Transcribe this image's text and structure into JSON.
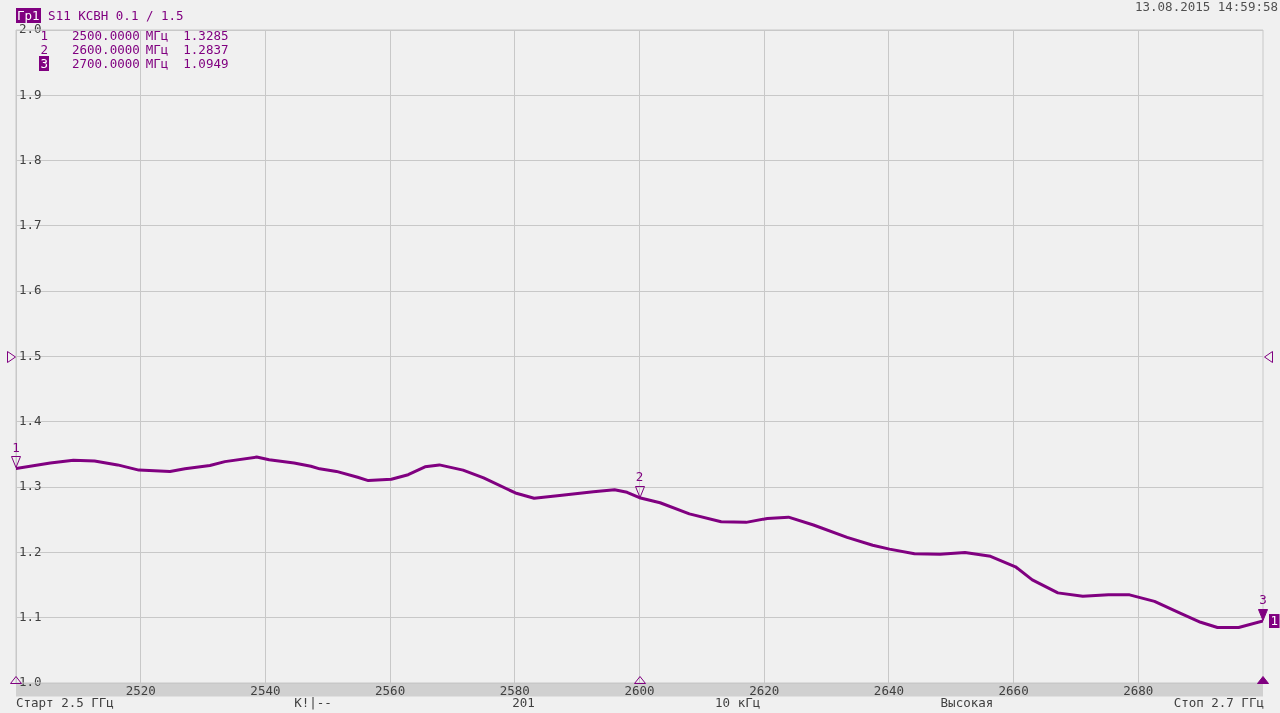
{
  "chart_data": {
    "type": "line",
    "title": "Гр1 S11 КСВН 0.1 / 1.5",
    "x": [
      2500,
      2505.5,
      2509.2,
      2512.6,
      2516.3,
      2519.7,
      2524.7,
      2527.1,
      2531.1,
      2533.5,
      2538.6,
      2540.6,
      2544.6,
      2547.3,
      2548.7,
      2551.4,
      2554.8,
      2556.5,
      2560.2,
      2562.9,
      2565.6,
      2567.9,
      2571.7,
      2575.0,
      2580.1,
      2583.1,
      2587.2,
      2592.6,
      2596.0,
      2598.0,
      2600,
      2603.3,
      2608.0,
      2613.1,
      2617.1,
      2620.5,
      2623.9,
      2627.9,
      2633.3,
      2637.4,
      2640.1,
      2644.1,
      2648.2,
      2652.2,
      2656.3,
      2660.3,
      2663.0,
      2667.1,
      2671.1,
      2675.2,
      2678.6,
      2682.6,
      2686.7,
      2690.0,
      2692.7,
      2696.1,
      2700
    ],
    "series": [
      {
        "name": "1",
        "color": "#800080",
        "values": [
          1.3285,
          1.337,
          1.341,
          1.34,
          1.334,
          1.326,
          1.324,
          1.328,
          1.333,
          1.339,
          1.346,
          1.342,
          1.337,
          1.332,
          1.328,
          1.324,
          1.315,
          1.31,
          1.312,
          1.319,
          1.331,
          1.334,
          1.326,
          1.314,
          1.291,
          1.283,
          1.287,
          1.293,
          1.296,
          1.292,
          1.2837,
          1.276,
          1.259,
          1.247,
          1.246,
          1.252,
          1.254,
          1.242,
          1.223,
          1.211,
          1.205,
          1.198,
          1.197,
          1.2,
          1.194,
          1.178,
          1.158,
          1.138,
          1.133,
          1.135,
          1.135,
          1.125,
          1.107,
          1.093,
          1.085,
          1.085,
          1.0949
        ]
      }
    ],
    "xlim": [
      2500,
      2700
    ],
    "xticks": [
      2520,
      2540,
      2560,
      2580,
      2600,
      2620,
      2640,
      2660,
      2680
    ],
    "ylim": [
      1,
      2
    ],
    "yticks": [
      {
        "value": 1,
        "label": "1.0"
      },
      1.1,
      1.2,
      1.3,
      1.4,
      1.5,
      1.6,
      1.7,
      1.8,
      1.9,
      {
        "value": 2,
        "label": "2.0"
      }
    ],
    "grid": true,
    "marker": "none",
    "line_style": "solid",
    "annotations": [
      "13.08.2015 14:59:58",
      "1 2500.0000 МГц 1.3285",
      "2 2600.0000 МГц 1.2837",
      "3 2700.0000 МГц 1.0949",
      {
        "text": "1",
        "x": 2500,
        "y": 1.3285
      },
      {
        "text": "2",
        "x": 2600,
        "y": 1.2837
      },
      {
        "text": "3",
        "x": 2700,
        "y": 1.0949
      },
      "Старт 2.5 ГГц",
      "К!|--",
      "201",
      "10 кГц",
      "Высокая",
      "Стоп 2.7 ГГц"
    ]
  }
}
